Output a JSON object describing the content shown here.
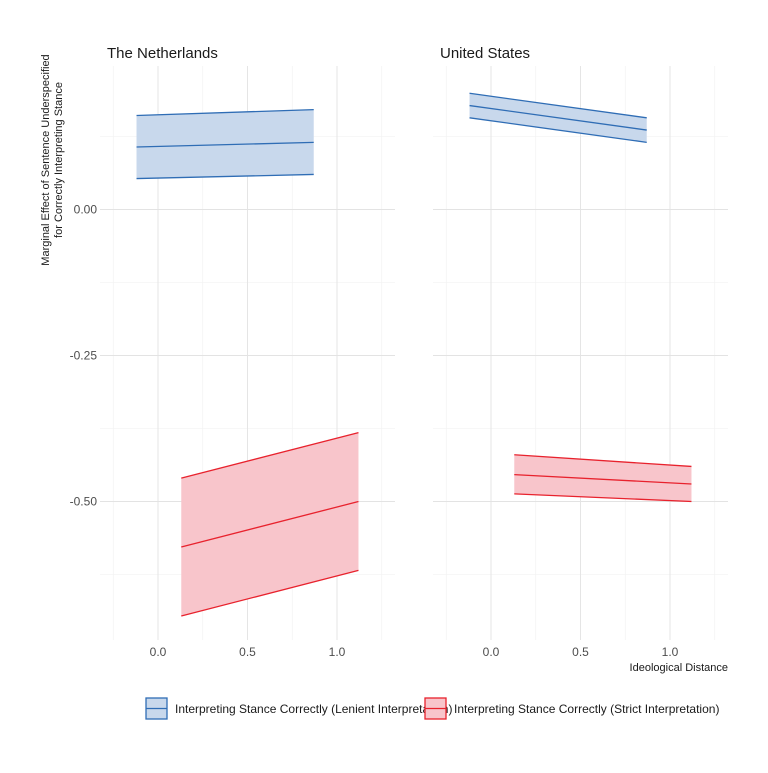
{
  "chart_data": {
    "type": "line",
    "ylabel_line1": "Marginal Effect of Sentence Underspecified",
    "ylabel_line2": "for Correctly Interpreting Stance",
    "xlabel": "Ideological Distance",
    "y_ticks": [
      "0.00",
      "-0.25",
      "-0.50"
    ],
    "y_tick_values": [
      0,
      -0.25,
      -0.5
    ],
    "x_ticks": [
      "0.0",
      "0.5",
      "1.0"
    ],
    "x_tick_values": [
      0,
      0.5,
      1
    ],
    "xlim": [
      -0.25,
      1.3
    ],
    "ylim": [
      -0.74,
      0.21
    ],
    "grid": true,
    "legend_position": "bottom",
    "colors": {
      "lenient": "#2f6db5",
      "lenient_fill": "#c8d8ec",
      "strict": "#e8222d",
      "strict_fill": "#f8c5cb"
    },
    "panels": [
      {
        "title": "The Netherlands",
        "series": [
          {
            "name": "Interpreting Stance Correctly (Lenient Interpretation)",
            "x": [
              -0.12,
              0.87
            ],
            "y": [
              0.107,
              0.115
            ],
            "lower": [
              0.053,
              0.06
            ],
            "upper": [
              0.161,
              0.171
            ]
          },
          {
            "name": "Interpreting Stance Correctly (Strict Interpretation)",
            "x": [
              0.13,
              1.12
            ],
            "y": [
              -0.578,
              -0.5
            ],
            "lower": [
              -0.696,
              -0.618
            ],
            "upper": [
              -0.46,
              -0.382
            ]
          }
        ]
      },
      {
        "title": "United States",
        "series": [
          {
            "name": "Interpreting Stance Correctly (Lenient Interpretation)",
            "x": [
              -0.12,
              0.87
            ],
            "y": [
              0.178,
              0.136
            ],
            "lower": [
              0.157,
              0.115
            ],
            "upper": [
              0.199,
              0.157
            ]
          },
          {
            "name": "Interpreting Stance Correctly (Strict Interpretation)",
            "x": [
              0.13,
              1.12
            ],
            "y": [
              -0.454,
              -0.47
            ],
            "lower": [
              -0.487,
              -0.5
            ],
            "upper": [
              -0.42,
              -0.44
            ]
          }
        ]
      }
    ],
    "legend": [
      "Interpreting Stance Correctly (Lenient Interpretation)",
      "Interpreting Stance Correctly (Strict Interpretation)"
    ]
  }
}
